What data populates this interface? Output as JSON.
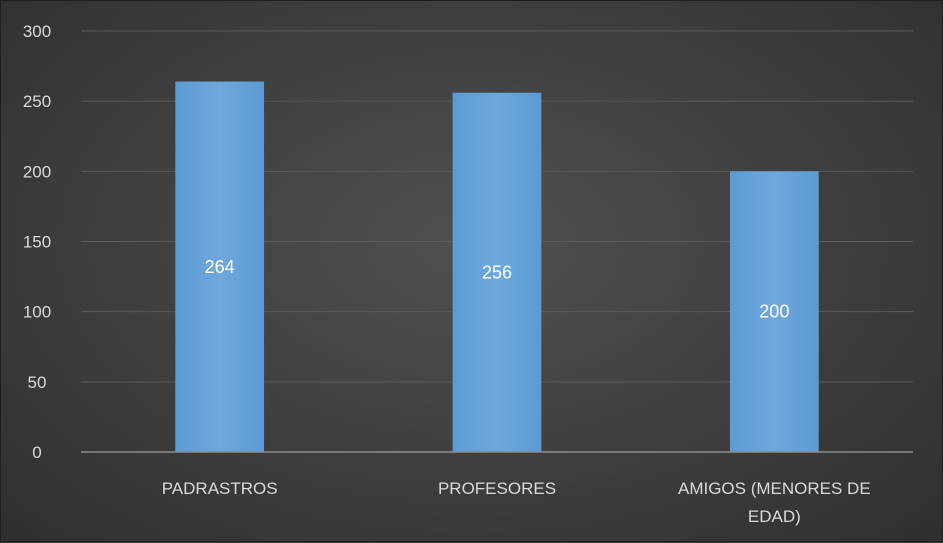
{
  "chart_data": {
    "type": "bar",
    "categories": [
      "PADRASTROS",
      "PROFESORES",
      "AMIGOS (MENORES DE EDAD)"
    ],
    "category_label_lines": [
      [
        "PADRASTROS"
      ],
      [
        "PROFESORES"
      ],
      [
        "AMIGOS (MENORES DE",
        "EDAD)"
      ]
    ],
    "values": [
      264,
      256,
      200
    ],
    "data_labels": [
      "264",
      "256",
      "200"
    ],
    "ylim": [
      0,
      300
    ],
    "yticks": [
      0,
      50,
      100,
      150,
      200,
      250,
      300
    ],
    "grid": true,
    "legend": "none",
    "colors": {
      "bar": "#5b9bd5",
      "bar_light": "#6fa8dc",
      "grid": "#5a5a5a",
      "axis": "#8c8c8c",
      "text": "#d9d9d9",
      "background": "#404040"
    }
  }
}
